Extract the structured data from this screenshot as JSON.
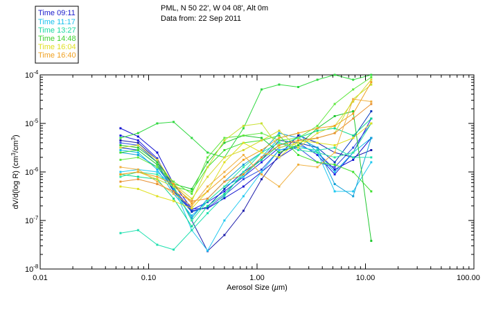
{
  "chart_data": {
    "type": "line",
    "title": "PML, N 50 22', W 04 08', Alt 0m",
    "subtitle": "Data from: 22 Sep 2011",
    "xlabel": "Aerosol Size (µm)",
    "xlabel_parts": {
      "text": "Aerosol Size (",
      "mu": "µ",
      "unit_rest": "m)"
    },
    "ylabel": "dV/d(log R) (cm³/cm³)",
    "ylabel_parts": {
      "pre": "dV/d(log R) (cm",
      "sup1": "3",
      "mid": "/cm",
      "sup2": "3",
      "post": ")"
    },
    "x_scale": "log",
    "y_scale": "log",
    "xlim": [
      0.01,
      100
    ],
    "ylim_exp": [
      -8,
      -4
    ],
    "x_ticks": [
      "0.01",
      "0.10",
      "1.00",
      "10.00",
      "100.00"
    ],
    "y_tick_base": "10",
    "y_tick_exps": [
      "-8",
      "-7",
      "-6",
      "-5",
      "-4"
    ],
    "legend_placement": "top-left outside",
    "x": [
      0.055,
      0.08,
      0.12,
      0.17,
      0.25,
      0.35,
      0.5,
      0.75,
      1.1,
      1.6,
      2.4,
      3.6,
      5.2,
      7.7,
      11.3
    ],
    "series": [
      {
        "name": "Time 09:11",
        "color": "#1010d0",
        "log_values": [
          -5.1,
          -5.27,
          -5.6,
          -6.25,
          -6.76,
          -6.75,
          -6.54,
          -6.3,
          -6.0,
          -5.7,
          -5.45,
          -5.6,
          -5.95,
          -5.75,
          -5.3
        ]
      },
      {
        "name": "Time 09:11",
        "color": "#2020e0",
        "log_values": [
          -5.25,
          -5.35,
          -5.72,
          -6.35,
          -6.78,
          -6.62,
          -6.4,
          -6.1,
          -5.8,
          -5.5,
          -5.4,
          -5.65,
          -6.05,
          -5.6,
          -4.9
        ]
      },
      {
        "name": "Time 09:11",
        "color": "#3050e0",
        "log_values": [
          -5.4,
          -5.45,
          -5.8,
          -6.38,
          -6.8,
          -6.74,
          -6.48,
          -6.15,
          -5.95,
          -5.55,
          -5.5,
          -5.8,
          -5.9,
          -5.5,
          -5.0
        ]
      },
      {
        "name": "Time 09:11",
        "color": "#0033bb",
        "log_values": [
          -5.5,
          -5.55,
          -5.85,
          -6.4,
          -6.82,
          -6.72,
          -6.35,
          -6.0,
          -5.75,
          -5.35,
          -5.4,
          -5.5,
          -5.8,
          -5.3,
          -4.75
        ]
      },
      {
        "name": "Time 09:11",
        "color": "#1a1aaa",
        "log_values": [
          -5.35,
          -5.4,
          -5.75,
          -6.3,
          -7.0,
          -7.63,
          -7.3,
          -6.8,
          -6.15,
          -5.65,
          -5.25,
          -5.4,
          -5.6,
          -5.7,
          -5.55
        ]
      },
      {
        "name": "Time 11:17",
        "color": "#10b8e8",
        "log_values": [
          -5.55,
          -5.6,
          -5.95,
          -6.45,
          -6.9,
          -6.6,
          -6.3,
          -6.1,
          -5.7,
          -5.3,
          -5.2,
          -5.6,
          -6.0,
          -5.6,
          -5.3
        ]
      },
      {
        "name": "Time 11:17",
        "color": "#20c8f0",
        "log_values": [
          -6.0,
          -5.95,
          -6.0,
          -6.3,
          -7.2,
          -7.62,
          -7.0,
          -6.5,
          -6.0,
          -5.55,
          -5.45,
          -5.6,
          -6.4,
          -6.4,
          -5.8
        ]
      },
      {
        "name": "Time 11:17",
        "color": "#10a0d8",
        "log_values": [
          -5.6,
          -5.65,
          -5.9,
          -6.35,
          -6.95,
          -6.55,
          -6.2,
          -5.85,
          -5.6,
          -5.2,
          -5.3,
          -5.5,
          -6.25,
          -6.5,
          -5.3
        ]
      },
      {
        "name": "Time 13:27",
        "color": "#20e0b0",
        "log_values": [
          -7.26,
          -7.2,
          -7.5,
          -7.6,
          -7.2,
          -6.85,
          -6.5,
          -6.0,
          -5.6,
          -5.4,
          -5.5,
          -5.55,
          -5.5,
          -5.7,
          -5.7
        ]
      },
      {
        "name": "Time 13:27",
        "color": "#30e8a0",
        "log_values": [
          -6.1,
          -6.0,
          -6.05,
          -6.3,
          -7.0,
          -6.6,
          -6.3,
          -5.9,
          -5.6,
          -5.4,
          -5.55,
          -5.6,
          -5.7,
          -5.6,
          -5.0
        ]
      },
      {
        "name": "Time 13:27",
        "color": "#10d890",
        "log_values": [
          -6.05,
          -6.1,
          -6.15,
          -6.55,
          -7.12,
          -6.7,
          -6.45,
          -6.05,
          -5.75,
          -5.45,
          -5.3,
          -5.15,
          -5.1,
          -5.25,
          -4.9
        ]
      },
      {
        "name": "Time 14:48",
        "color": "#30d840",
        "log_values": [
          -5.3,
          -5.2,
          -5.0,
          -4.97,
          -5.3,
          -5.6,
          -5.7,
          -5.1,
          -4.3,
          -4.2,
          -4.25,
          -4.1,
          -4.0,
          -4.1,
          -3.9
        ]
      },
      {
        "name": "Time 14:48",
        "color": "#40e030",
        "log_values": [
          -5.6,
          -5.55,
          -5.85,
          -6.3,
          -6.4,
          -5.9,
          -5.55,
          -5.4,
          -5.35,
          -5.25,
          -5.65,
          -5.8,
          -5.85,
          -6.0,
          -6.4
        ]
      },
      {
        "name": "Time 14:48",
        "color": "#20c830",
        "log_values": [
          -5.45,
          -5.5,
          -5.8,
          -6.25,
          -6.35,
          -5.8,
          -5.4,
          -5.25,
          -5.3,
          -5.6,
          -5.45,
          -5.1,
          -4.85,
          -4.75,
          -7.42
        ]
      },
      {
        "name": "Time 14:48",
        "color": "#60e840",
        "log_values": [
          -5.75,
          -5.7,
          -5.9,
          -6.2,
          -6.45,
          -5.7,
          -5.3,
          -5.25,
          -5.2,
          -5.35,
          -5.3,
          -5.05,
          -4.6,
          -4.3,
          -4.05
        ]
      },
      {
        "name": "Time 16:04",
        "color": "#c8e030",
        "log_values": [
          -6.05,
          -6.0,
          -6.15,
          -6.3,
          -6.6,
          -5.9,
          -5.35,
          -5.05,
          -5.0,
          -5.5,
          -5.4,
          -5.3,
          -5.2,
          -4.5,
          -4.2
        ]
      },
      {
        "name": "Time 16:04",
        "color": "#e0e020",
        "log_values": [
          -6.3,
          -6.35,
          -6.5,
          -6.6,
          -6.75,
          -6.4,
          -5.8,
          -5.4,
          -5.6,
          -5.7,
          -5.35,
          -5.4,
          -5.45,
          -5.3,
          -5.0
        ]
      },
      {
        "name": "Time 16:04",
        "color": "#d8d830",
        "log_values": [
          -5.5,
          -5.45,
          -5.75,
          -6.25,
          -6.55,
          -6.1,
          -5.7,
          -5.55,
          -5.35,
          -5.15,
          -5.5,
          -5.2,
          -5.05,
          -4.55,
          -4.1
        ]
      },
      {
        "name": "Time 16:40",
        "color": "#f0a020",
        "log_values": [
          -6.05,
          -6.0,
          -6.1,
          -6.25,
          -6.65,
          -6.4,
          -6.1,
          -5.75,
          -5.55,
          -5.3,
          -5.2,
          -5.1,
          -5.05,
          -4.8,
          -4.15
        ]
      },
      {
        "name": "Time 16:40",
        "color": "#e89030",
        "log_values": [
          -6.2,
          -6.15,
          -6.25,
          -6.4,
          -6.6,
          -6.55,
          -6.2,
          -6.05,
          -5.7,
          -5.45,
          -5.35,
          -5.3,
          -5.2,
          -4.9,
          -4.6
        ]
      },
      {
        "name": "Time 16:40",
        "color": "#f0b040",
        "log_values": [
          -5.9,
          -5.95,
          -6.2,
          -6.45,
          -6.7,
          -6.3,
          -6.0,
          -5.65,
          -6.05,
          -6.3,
          -5.85,
          -5.9,
          -5.6,
          -4.5,
          -4.55
        ]
      }
    ],
    "legend": [
      {
        "label": "Time 09:11",
        "color": "#1a1acc"
      },
      {
        "label": "Time 11:17",
        "color": "#18c0ee"
      },
      {
        "label": "Time 13:27",
        "color": "#18d8a0"
      },
      {
        "label": "Time 14:48",
        "color": "#40d030"
      },
      {
        "label": "Time 16:04",
        "color": "#e0e020"
      },
      {
        "label": "Time 16:40",
        "color": "#f0a020"
      }
    ]
  }
}
